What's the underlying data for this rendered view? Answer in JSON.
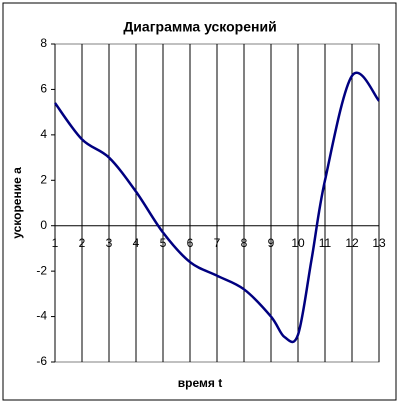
{
  "chart_data": {
    "type": "line",
    "title": "Диаграмма ускорений",
    "x_label": "время t",
    "y_label": "ускорение а",
    "x": [
      1,
      2,
      3,
      4,
      5,
      6,
      7,
      8,
      9,
      9.5,
      10,
      10.5,
      11,
      12,
      13
    ],
    "series": [
      {
        "name": "ускорение а",
        "color": "#000080",
        "values": [
          5.4,
          3.8,
          3.0,
          1.5,
          -0.3,
          -1.6,
          -2.2,
          -2.8,
          -4.0,
          -4.9,
          -4.8,
          -1.5,
          2.0,
          6.6,
          5.5
        ]
      }
    ],
    "xlim": [
      1,
      13
    ],
    "xticks": [
      1,
      2,
      3,
      4,
      5,
      6,
      7,
      8,
      9,
      10,
      11,
      12,
      13
    ],
    "ylim": [
      -6,
      8
    ],
    "yticks": [
      -6,
      -4,
      -2,
      0,
      2,
      4,
      6,
      8
    ],
    "grid": "x"
  }
}
